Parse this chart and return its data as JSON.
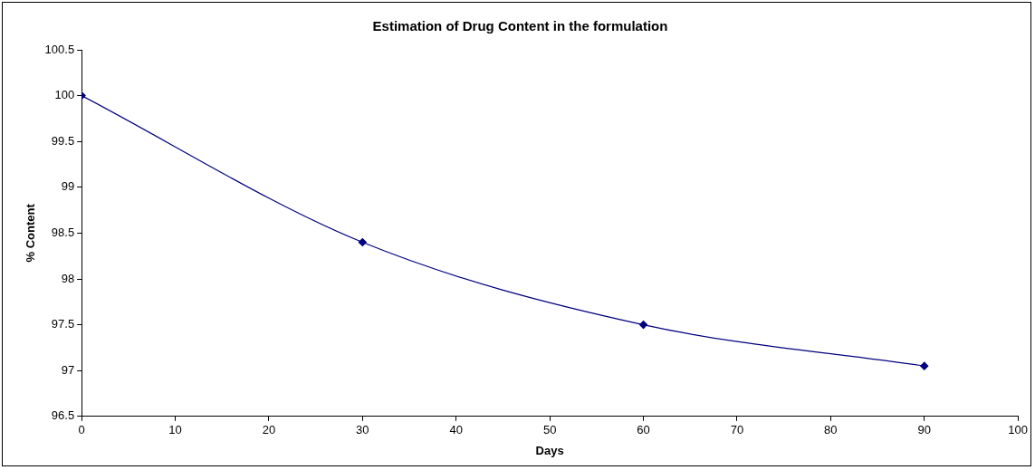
{
  "chart_data": {
    "type": "line",
    "title": "Estimation of Drug Content in the formulation",
    "xlabel": "Days",
    "ylabel": "% Content",
    "x": [
      0,
      30,
      60,
      90
    ],
    "series": [
      {
        "color": "#000080",
        "values": [
          100,
          98.4,
          97.5,
          97.05
        ]
      }
    ],
    "xlim": [
      0,
      100
    ],
    "xticks": [
      0,
      10,
      20,
      30,
      40,
      50,
      60,
      70,
      80,
      90,
      100
    ],
    "ylim": [
      96.5,
      100.5
    ],
    "yticks": [
      96.5,
      97,
      97.5,
      98,
      98.5,
      99,
      99.5,
      100,
      100.5
    ],
    "grid": false,
    "legend": false,
    "marker": "diamond",
    "line_style": "solid"
  }
}
